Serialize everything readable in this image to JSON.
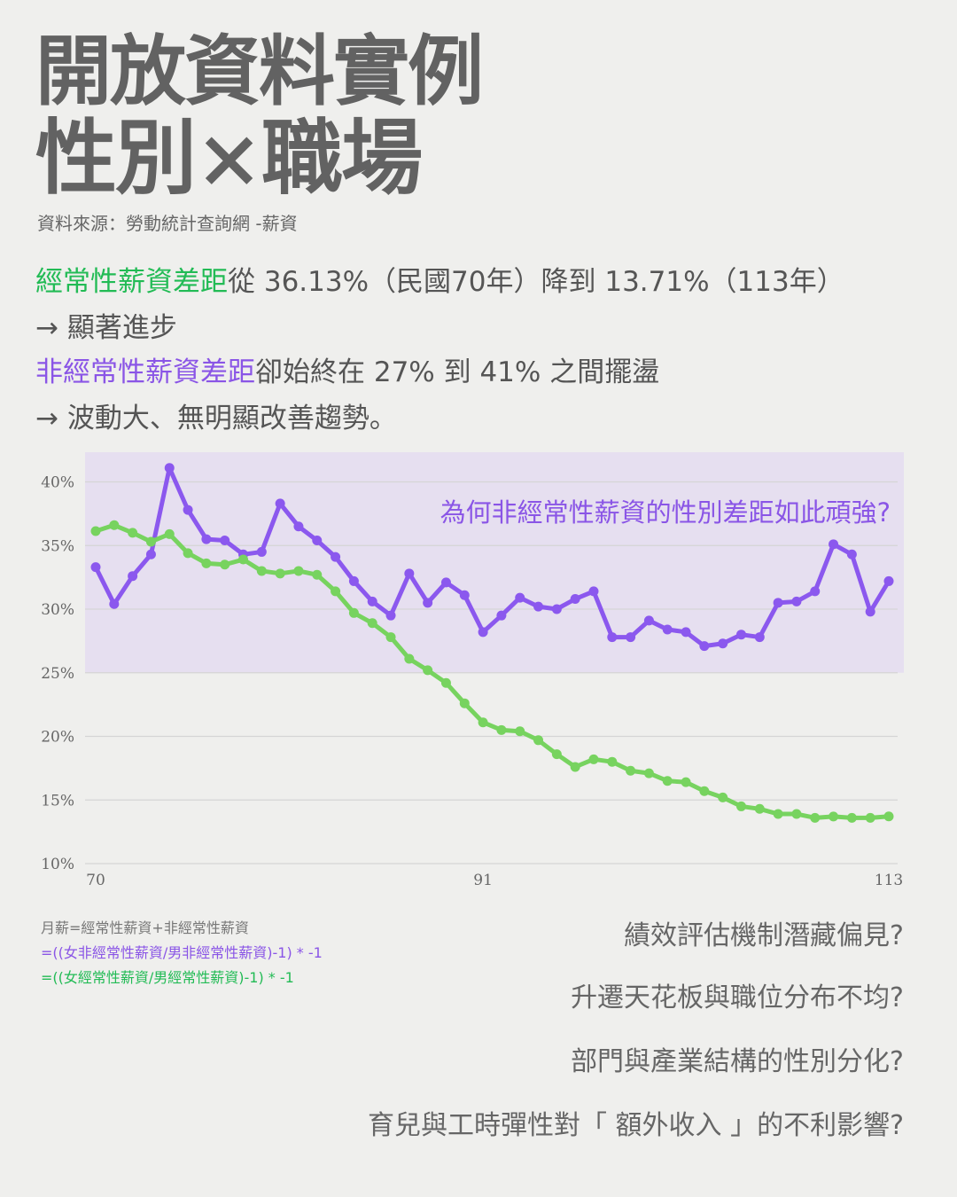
{
  "header": {
    "title_line1": "開放資料實例",
    "title_line2": "性別×職場",
    "source": "資料來源：勞動統計查詢網 -薪資"
  },
  "summary": {
    "p1_highlight": "經常性薪資差距",
    "p1_rest": "從 36.13%（民國70年）降到 13.71%（113年）",
    "p2": "→ 顯著進步",
    "p3_highlight": "非經常性薪資差距",
    "p3_rest": "卻始終在 27% 到 41% 之間擺盪",
    "p4": "→ 波動大、無明顯改善趨勢。"
  },
  "chart_question": "為何非經常性薪資的性別差距如此頑強?",
  "formula": {
    "line1": "月薪=經常性薪資+非經常性薪資",
    "line2": "=((女非經常性薪資/男非經常性薪資)-1) * -1",
    "line3": "=((女經常性薪資/男經常性薪資)-1) * -1"
  },
  "questions": [
    "績效評估機制潛藏偏見?",
    "升遷天花板與職位分布不均?",
    "部門與產業結構的性別分化?",
    "育兒與工時彈性對「 額外收入 」的不利影響?"
  ],
  "colors": {
    "green": "#77d35f",
    "purple": "#8b58ee",
    "highlight_bg": "#e6dff0",
    "grid": "#d5d5d5",
    "title": "#626262"
  },
  "chart_data": {
    "type": "line",
    "x": [
      70,
      71,
      72,
      73,
      74,
      75,
      76,
      77,
      78,
      79,
      80,
      81,
      82,
      83,
      84,
      85,
      86,
      87,
      88,
      89,
      90,
      91,
      92,
      93,
      94,
      95,
      96,
      97,
      98,
      99,
      100,
      101,
      102,
      103,
      104,
      105,
      106,
      107,
      108,
      109,
      110,
      111,
      112,
      113
    ],
    "xticks": [
      70,
      91,
      113
    ],
    "yticks": [
      10,
      15,
      20,
      25,
      30,
      35,
      40
    ],
    "ylim": [
      10,
      42
    ],
    "y_tick_labels": [
      "10%",
      "15%",
      "20%",
      "25%",
      "30%",
      "35%",
      "40%"
    ],
    "grid": true,
    "highlight_band": [
      25,
      43
    ],
    "series": [
      {
        "color": "#8b58ee",
        "values": [
          33.3,
          30.4,
          32.6,
          34.3,
          41.1,
          37.8,
          35.5,
          35.4,
          34.3,
          34.5,
          38.3,
          36.5,
          35.4,
          34.1,
          32.2,
          30.6,
          29.5,
          32.8,
          30.5,
          32.1,
          31.1,
          28.2,
          29.5,
          30.9,
          30.2,
          30.0,
          30.8,
          31.4,
          27.8,
          27.8,
          29.1,
          28.4,
          28.2,
          27.1,
          27.3,
          28.0,
          27.8,
          30.5,
          30.6,
          31.4,
          35.1,
          34.3,
          29.8,
          32.2
        ]
      },
      {
        "color": "#77d35f",
        "values": [
          36.13,
          36.6,
          36.0,
          35.3,
          35.9,
          34.4,
          33.6,
          33.5,
          33.9,
          33.0,
          32.8,
          33.0,
          32.7,
          31.4,
          29.7,
          28.9,
          27.8,
          26.1,
          25.2,
          24.2,
          22.6,
          21.1,
          20.5,
          20.4,
          19.7,
          18.6,
          17.6,
          18.2,
          18.0,
          17.3,
          17.1,
          16.5,
          16.4,
          15.7,
          15.2,
          14.5,
          14.3,
          13.9,
          13.9,
          13.6,
          13.7,
          13.6,
          13.6,
          13.71
        ]
      }
    ]
  }
}
